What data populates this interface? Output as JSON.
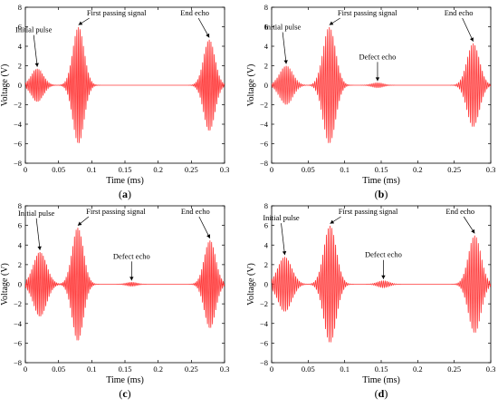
{
  "chart_data": [
    {
      "type": "line",
      "caption": "a",
      "xlabel": "Time (ms)",
      "ylabel": "Voltage  (V)",
      "xlim": [
        0,
        0.3
      ],
      "ylim": [
        -8,
        8
      ],
      "xticks": [
        "0",
        "0.05",
        "0.1",
        "0.15",
        "0.2",
        "0.25",
        "0.3"
      ],
      "yticks": [
        "8",
        "6",
        "4",
        "2",
        "0",
        "−2",
        "−4",
        "−6",
        "−8"
      ],
      "line_color": "#ff3b3b",
      "carrier_period_ms": 0.0025,
      "bursts": [
        {
          "center_ms": 0.018,
          "width_ms": 0.009,
          "amplitude": 1.7
        },
        {
          "center_ms": 0.08,
          "width_ms": 0.0085,
          "amplitude": 6.0
        },
        {
          "center_ms": 0.277,
          "width_ms": 0.0085,
          "amplitude": 4.7
        }
      ],
      "annotations": [
        {
          "text": "Initial pulse",
          "x": 0.018,
          "y": 1.7
        },
        {
          "text": "First passing signal",
          "x": 0.08,
          "y": 6.0
        },
        {
          "text": "End echo",
          "x": 0.277,
          "y": 4.7
        }
      ]
    },
    {
      "type": "line",
      "caption": "b",
      "xlabel": "Time (ms)",
      "ylabel": "Voltage  (V)",
      "xlim": [
        0,
        0.3
      ],
      "ylim": [
        -8,
        8
      ],
      "xticks": [
        "0",
        "0.05",
        "0.1",
        "0.15",
        "0.2",
        "0.25",
        "0.3"
      ],
      "yticks": [
        "8",
        "6",
        "4",
        "2",
        "0",
        "−2",
        "−4",
        "−6",
        "−8"
      ],
      "line_color": "#ff3b3b",
      "carrier_period_ms": 0.0025,
      "bursts": [
        {
          "center_ms": 0.02,
          "width_ms": 0.009,
          "amplitude": 2.0
        },
        {
          "center_ms": 0.079,
          "width_ms": 0.0085,
          "amplitude": 6.0
        },
        {
          "center_ms": 0.145,
          "width_ms": 0.008,
          "amplitude": 0.25
        },
        {
          "center_ms": 0.276,
          "width_ms": 0.0085,
          "amplitude": 4.3
        }
      ],
      "annotations": [
        {
          "text": "Initial pulse",
          "x": 0.02,
          "y": 2.0
        },
        {
          "text": "First passing signal",
          "x": 0.079,
          "y": 6.0
        },
        {
          "text": "Defect echo",
          "x": 0.145,
          "y": 0.25
        },
        {
          "text": "End echo",
          "x": 0.276,
          "y": 4.3
        }
      ]
    },
    {
      "type": "line",
      "caption": "c",
      "xlabel": "Time (ms)",
      "ylabel": "Voltage  (V)",
      "xlim": [
        0,
        0.3
      ],
      "ylim": [
        -8,
        8
      ],
      "xticks": [
        "0",
        "0.05",
        "0.1",
        "0.15",
        "0.2",
        "0.25",
        "0.3"
      ],
      "yticks": [
        "8",
        "6",
        "4",
        "2",
        "0",
        "−2",
        "−4",
        "−6",
        "−8"
      ],
      "line_color": "#ff3b3b",
      "carrier_period_ms": 0.0025,
      "bursts": [
        {
          "center_ms": 0.022,
          "width_ms": 0.01,
          "amplitude": 3.3
        },
        {
          "center_ms": 0.079,
          "width_ms": 0.0085,
          "amplitude": 5.8
        },
        {
          "center_ms": 0.16,
          "width_ms": 0.008,
          "amplitude": 0.2
        },
        {
          "center_ms": 0.278,
          "width_ms": 0.0085,
          "amplitude": 4.5
        }
      ],
      "annotations": [
        {
          "text": "Initial pulse",
          "x": 0.022,
          "y": 3.3
        },
        {
          "text": "First passing signal",
          "x": 0.079,
          "y": 5.8
        },
        {
          "text": "Defect echo",
          "x": 0.16,
          "y": 0.2
        },
        {
          "text": "End echo",
          "x": 0.278,
          "y": 4.5
        }
      ]
    },
    {
      "type": "line",
      "caption": "d",
      "xlabel": "Time (ms)",
      "ylabel": "Voltage  (V)",
      "xlim": [
        0,
        0.3
      ],
      "ylim": [
        -8,
        8
      ],
      "xticks": [
        "0",
        "0.05",
        "0.1",
        "0.15",
        "0.2",
        "0.25",
        "0.3"
      ],
      "yticks": [
        "8",
        "6",
        "4",
        "2",
        "0",
        "−2",
        "−4",
        "−6",
        "−8"
      ],
      "line_color": "#ff3b3b",
      "carrier_period_ms": 0.0025,
      "bursts": [
        {
          "center_ms": 0.018,
          "width_ms": 0.0095,
          "amplitude": 2.8
        },
        {
          "center_ms": 0.08,
          "width_ms": 0.0085,
          "amplitude": 6.0
        },
        {
          "center_ms": 0.153,
          "width_ms": 0.008,
          "amplitude": 0.35
        },
        {
          "center_ms": 0.278,
          "width_ms": 0.0085,
          "amplitude": 5.0
        }
      ],
      "annotations": [
        {
          "text": "Initial pulse",
          "x": 0.018,
          "y": 2.8
        },
        {
          "text": "First passing signal",
          "x": 0.08,
          "y": 6.0
        },
        {
          "text": "Defect echo",
          "x": 0.153,
          "y": 0.35
        },
        {
          "text": "End echo",
          "x": 0.278,
          "y": 5.0
        }
      ]
    }
  ]
}
